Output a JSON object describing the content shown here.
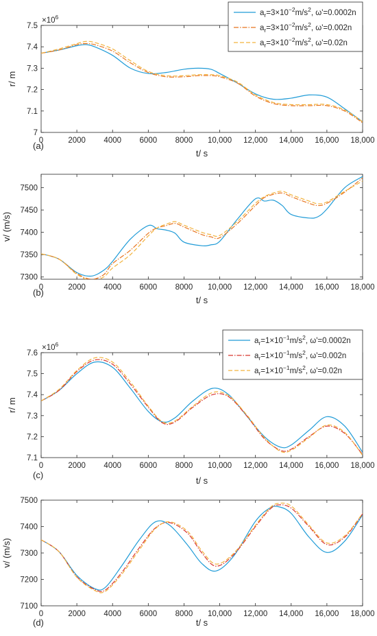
{
  "chart_data": [
    {
      "type": "line",
      "panel_label": "(a)",
      "xlabel": "t/ s",
      "ylabel": "r/ m",
      "exponent_label": "×10",
      "exponent_power": "6",
      "xlim": [
        0,
        18000
      ],
      "ylim": [
        7.0,
        7.5
      ],
      "xticks": [
        0,
        2000,
        4000,
        6000,
        8000,
        10000,
        12000,
        14000,
        16000,
        18000
      ],
      "xtick_labels": [
        "0",
        "2000",
        "4000",
        "6000",
        "8000",
        "10,000",
        "12,000",
        "14,000",
        "16,000",
        "18,000"
      ],
      "yticks": [
        7.0,
        7.1,
        7.2,
        7.3,
        7.4,
        7.5
      ],
      "ytick_labels": [
        "7",
        "7.1",
        "7.2",
        "7.3",
        "7.4",
        "7.5"
      ],
      "legend_position": "top-right",
      "x": [
        0,
        1000,
        2000,
        2500,
        3000,
        4000,
        5000,
        6000,
        7000,
        8000,
        8800,
        9500,
        10000,
        11000,
        12000,
        13000,
        14000,
        15000,
        16000,
        17000,
        18000
      ],
      "series": [
        {
          "name_pre": "a",
          "name_sub": "r",
          "name_mid": "=3×10",
          "name_exp": "−2",
          "name_unit": "m/s",
          "name_unit_exp": "2",
          "name_post": ", ω'=0.0002n",
          "color": "#1f9bd7",
          "dash": "solid",
          "values": [
            7.37,
            7.385,
            7.405,
            7.41,
            7.4,
            7.36,
            7.3,
            7.275,
            7.28,
            7.295,
            7.3,
            7.295,
            7.275,
            7.23,
            7.18,
            7.155,
            7.16,
            7.175,
            7.165,
            7.11,
            7.05
          ]
        },
        {
          "name_pre": "a",
          "name_sub": "r",
          "name_mid": "=3×10",
          "name_exp": "−2",
          "name_unit": "m/s",
          "name_unit_exp": "2",
          "name_post": ", ω'=0.002n",
          "color": "#e8731e",
          "dash": "dashdot",
          "values": [
            7.37,
            7.385,
            7.41,
            7.415,
            7.41,
            7.38,
            7.325,
            7.28,
            7.26,
            7.26,
            7.265,
            7.265,
            7.26,
            7.23,
            7.17,
            7.135,
            7.125,
            7.125,
            7.125,
            7.1,
            7.045
          ]
        },
        {
          "name_pre": "a",
          "name_sub": "r",
          "name_mid": "=3×10",
          "name_exp": "−2",
          "name_unit": "m/s",
          "name_unit_exp": "2",
          "name_post": ", ω'=0.02n",
          "color": "#f2b33d",
          "dash": "dashed",
          "values": [
            7.37,
            7.39,
            7.415,
            7.425,
            7.42,
            7.39,
            7.335,
            7.285,
            7.265,
            7.265,
            7.27,
            7.27,
            7.265,
            7.235,
            7.175,
            7.14,
            7.13,
            7.13,
            7.13,
            7.105,
            7.05
          ]
        }
      ]
    },
    {
      "type": "line",
      "panel_label": "(b)",
      "xlabel": "t/ s",
      "ylabel": "v/ (m/s)",
      "xlim": [
        0,
        18000
      ],
      "ylim": [
        7295,
        7530
      ],
      "xticks": [
        0,
        2000,
        4000,
        6000,
        8000,
        10000,
        12000,
        14000,
        16000,
        18000
      ],
      "xtick_labels": [
        "0",
        "2000",
        "4000",
        "6000",
        "8000",
        "10,000",
        "12,000",
        "14,000",
        "16,000",
        "18,000"
      ],
      "yticks": [
        7300,
        7350,
        7400,
        7450,
        7500
      ],
      "ytick_labels": [
        "7300",
        "7350",
        "7400",
        "7450",
        "7500"
      ],
      "x": [
        0,
        1000,
        2000,
        2800,
        3500,
        4000,
        5000,
        6000,
        6500,
        7000,
        7500,
        8000,
        9000,
        9500,
        10000,
        11000,
        12000,
        12500,
        13000,
        13500,
        14000,
        15000,
        15500,
        16000,
        17000,
        18000
      ],
      "series": [
        {
          "name": "solid",
          "color": "#1f9bd7",
          "dash": "solid",
          "values": [
            7352,
            7340,
            7310,
            7302,
            7315,
            7335,
            7385,
            7415,
            7408,
            7405,
            7398,
            7378,
            7370,
            7372,
            7380,
            7430,
            7475,
            7470,
            7472,
            7460,
            7440,
            7432,
            7435,
            7452,
            7500,
            7525
          ]
        },
        {
          "name": "dashdot",
          "color": "#e8731e",
          "dash": "dashdot",
          "values": [
            7352,
            7340,
            7308,
            7295,
            7305,
            7330,
            7360,
            7398,
            7410,
            7415,
            7420,
            7412,
            7395,
            7390,
            7388,
            7420,
            7460,
            7478,
            7485,
            7488,
            7480,
            7465,
            7460,
            7465,
            7490,
            7522
          ]
        },
        {
          "name": "dashed",
          "color": "#f2b33d",
          "dash": "dashed",
          "values": [
            7352,
            7340,
            7306,
            7292,
            7300,
            7320,
            7350,
            7392,
            7410,
            7418,
            7424,
            7416,
            7400,
            7395,
            7393,
            7425,
            7465,
            7480,
            7488,
            7492,
            7484,
            7470,
            7464,
            7468,
            7492,
            7515
          ]
        }
      ]
    },
    {
      "type": "line",
      "panel_label": "(c)",
      "xlabel": "t/ s",
      "ylabel": "r/ m",
      "exponent_label": "×10",
      "exponent_power": "6",
      "xlim": [
        0,
        18000
      ],
      "ylim": [
        7.1,
        7.6
      ],
      "xticks": [
        0,
        2000,
        4000,
        6000,
        8000,
        10000,
        12000,
        14000,
        16000,
        18000
      ],
      "xtick_labels": [
        "0",
        "2000",
        "4000",
        "6000",
        "8000",
        "10,000",
        "12,000",
        "14,000",
        "16,000",
        "18,000"
      ],
      "yticks": [
        7.1,
        7.2,
        7.3,
        7.4,
        7.5,
        7.6
      ],
      "ytick_labels": [
        "7.1",
        "7.2",
        "7.3",
        "7.4",
        "7.5",
        "7.6"
      ],
      "legend_position": "top-right",
      "x": [
        0,
        1000,
        2000,
        3000,
        4000,
        5000,
        6000,
        6800,
        7500,
        8500,
        9600,
        10500,
        11500,
        12500,
        13400,
        14000,
        15000,
        16000,
        17000,
        18000
      ],
      "series": [
        {
          "name_pre": "a",
          "name_sub": "r",
          "name_mid": "=1×10",
          "name_exp": "−1",
          "name_unit": "m/s",
          "name_unit_exp": "2",
          "name_post": ", ω'=0.0002n",
          "color": "#1f9bd7",
          "dash": "solid",
          "values": [
            7.37,
            7.42,
            7.5,
            7.555,
            7.53,
            7.43,
            7.32,
            7.27,
            7.29,
            7.37,
            7.43,
            7.4,
            7.3,
            7.2,
            7.15,
            7.16,
            7.23,
            7.295,
            7.25,
            7.125
          ]
        },
        {
          "name_pre": "a",
          "name_sub": "r",
          "name_mid": "=1×10",
          "name_exp": "−1",
          "name_unit": "m/s",
          "name_unit_exp": "2",
          "name_post": ", ω'=0.002n",
          "color": "#d8342c",
          "dash": "dashdot",
          "values": [
            7.37,
            7.42,
            7.51,
            7.565,
            7.545,
            7.45,
            7.34,
            7.265,
            7.27,
            7.34,
            7.4,
            7.39,
            7.3,
            7.19,
            7.135,
            7.14,
            7.2,
            7.25,
            7.215,
            7.115
          ]
        },
        {
          "name_pre": "a",
          "name_sub": "r",
          "name_mid": "=1×10",
          "name_exp": "−1",
          "name_unit": "m/s",
          "name_unit_exp": "2",
          "name_post": ", ω'=0.02n",
          "color": "#f2b33d",
          "dash": "dashed",
          "values": [
            7.37,
            7.425,
            7.515,
            7.575,
            7.555,
            7.46,
            7.345,
            7.27,
            7.275,
            7.345,
            7.41,
            7.395,
            7.305,
            7.195,
            7.13,
            7.135,
            7.195,
            7.255,
            7.22,
            7.11
          ]
        }
      ]
    },
    {
      "type": "line",
      "panel_label": "(d)",
      "xlabel": "t/ s",
      "ylabel": "v/ (m/s)",
      "xlim": [
        0,
        18000
      ],
      "ylim": [
        7100,
        7500
      ],
      "xticks": [
        0,
        2000,
        4000,
        6000,
        8000,
        10000,
        12000,
        14000,
        16000,
        18000
      ],
      "xtick_labels": [
        "0",
        "2000",
        "4000",
        "6000",
        "8000",
        "10,000",
        "12,000",
        "14,000",
        "16,000",
        "18,000"
      ],
      "yticks": [
        7100,
        7200,
        7300,
        7400,
        7500
      ],
      "ytick_labels": [
        "7100",
        "7200",
        "7300",
        "7400",
        "7500"
      ],
      "x": [
        0,
        1000,
        2000,
        3000,
        3600,
        4500,
        5500,
        6400,
        7200,
        8200,
        9000,
        9800,
        10800,
        12000,
        12800,
        13300,
        14000,
        15000,
        16000,
        17000,
        18000
      ],
      "series": [
        {
          "name": "solid",
          "color": "#1f9bd7",
          "dash": "solid",
          "values": [
            7350,
            7305,
            7215,
            7165,
            7170,
            7250,
            7350,
            7418,
            7405,
            7330,
            7260,
            7232,
            7290,
            7420,
            7470,
            7475,
            7450,
            7360,
            7302,
            7345,
            7445
          ]
        },
        {
          "name": "dashdot",
          "color": "#d8342c",
          "dash": "dashdot",
          "values": [
            7350,
            7305,
            7210,
            7162,
            7160,
            7225,
            7320,
            7395,
            7415,
            7375,
            7300,
            7250,
            7295,
            7400,
            7465,
            7482,
            7470,
            7400,
            7332,
            7360,
            7448
          ]
        },
        {
          "name": "dashed",
          "color": "#f2b33d",
          "dash": "dashed",
          "values": [
            7350,
            7305,
            7208,
            7158,
            7155,
            7218,
            7312,
            7392,
            7418,
            7382,
            7308,
            7258,
            7300,
            7405,
            7470,
            7488,
            7478,
            7405,
            7338,
            7365,
            7450
          ]
        }
      ]
    }
  ]
}
